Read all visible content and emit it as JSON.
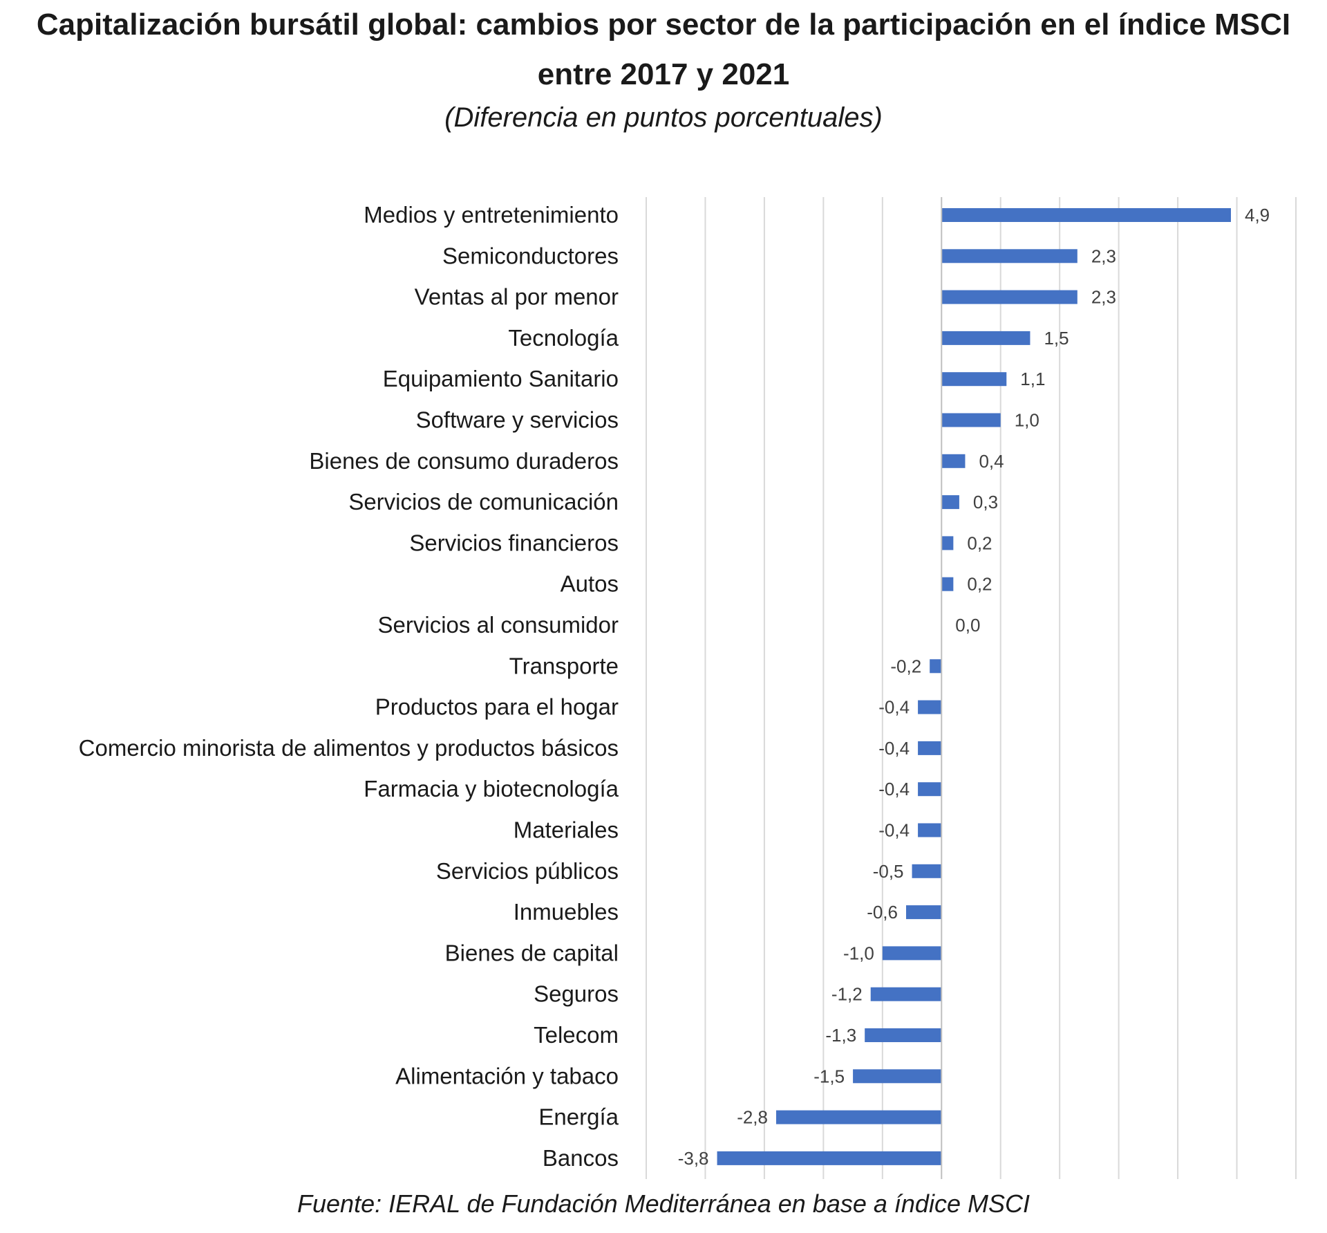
{
  "title_lines": [
    "Capitalización bursátil global: cambios por sector de la participación en el índice MSCI",
    "entre 2017 y 2021"
  ],
  "subtitle": "(Diferencia en puntos porcentuales)",
  "source": "Fuente: IERAL de Fundación Mediterránea en base a índice MSCI",
  "chart_data": {
    "type": "bar",
    "orientation": "horizontal",
    "title": "Capitalización bursátil global: cambios por sector de la participación en el índice MSCI entre 2017 y 2021",
    "subtitle": "(Diferencia en puntos porcentuales)",
    "xlim": [
      -5,
      6
    ],
    "grid": true,
    "bar_color": "#4472C4",
    "categories": [
      "Medios y entretenimiento",
      "Semiconductores",
      "Ventas al por menor",
      "Tecnología",
      "Equipamiento Sanitario",
      "Software y servicios",
      "Bienes de consumo duraderos",
      "Servicios de comunicación",
      "Servicios financieros",
      "Autos",
      "Servicios al consumidor",
      "Transporte",
      "Productos para el hogar",
      "Comercio minorista de alimentos y productos básicos",
      "Farmacia y biotecnología",
      "Materiales",
      "Servicios públicos",
      "Inmuebles",
      "Bienes de capital",
      "Seguros",
      "Telecom",
      "Alimentación y tabaco",
      "Energía",
      "Bancos"
    ],
    "values": [
      4.9,
      2.3,
      2.3,
      1.5,
      1.1,
      1.0,
      0.4,
      0.3,
      0.2,
      0.2,
      0.0,
      -0.2,
      -0.4,
      -0.4,
      -0.4,
      -0.4,
      -0.5,
      -0.6,
      -1.0,
      -1.2,
      -1.3,
      -1.5,
      -2.8,
      -3.8
    ],
    "value_labels": [
      "4,9",
      "2,3",
      "2,3",
      "1,5",
      "1,1",
      "1,0",
      "0,4",
      "0,3",
      "0,2",
      "0,2",
      "0,0",
      "-0,2",
      "-0,4",
      "-0,4",
      "-0,4",
      "-0,4",
      "-0,5",
      "-0,6",
      "-1,0",
      "-1,2",
      "-1,3",
      "-1,5",
      "-2,8",
      "-3,8"
    ]
  }
}
